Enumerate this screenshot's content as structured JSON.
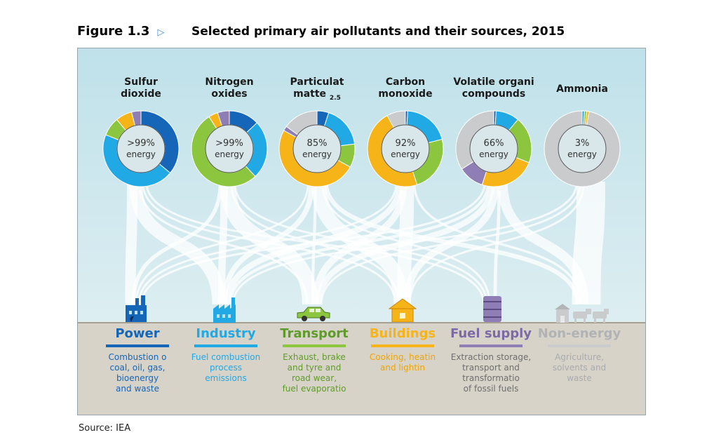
{
  "figure": {
    "label": "Figure 1.3",
    "arrow": "▷",
    "title": "Selected primary air pollutants and their sources, 2015"
  },
  "colors": {
    "power": "#1565b8",
    "industry": "#21a9e6",
    "transport": "#8cc63f",
    "buildings": "#f7b418",
    "fuel_supply": "#8f7db5",
    "non_energy": "#c9cbcd"
  },
  "pollutants": [
    {
      "name_line1": "Sulfur",
      "name_line2": "dioxide",
      "sub": "",
      "pct": ">99%",
      "pct_label": "energy",
      "shares": [
        {
          "sector": "power",
          "value": 0.36
        },
        {
          "sector": "industry",
          "value": 0.45
        },
        {
          "sector": "transport",
          "value": 0.08
        },
        {
          "sector": "buildings",
          "value": 0.07
        },
        {
          "sector": "fuel_supply",
          "value": 0.04
        }
      ]
    },
    {
      "name_line1": "Nitrogen",
      "name_line2": "oxides",
      "sub": "",
      "pct": ">99%",
      "pct_label": "energy",
      "shares": [
        {
          "sector": "power",
          "value": 0.13
        },
        {
          "sector": "industry",
          "value": 0.25
        },
        {
          "sector": "transport",
          "value": 0.53
        },
        {
          "sector": "buildings",
          "value": 0.04
        },
        {
          "sector": "fuel_supply",
          "value": 0.05
        }
      ]
    },
    {
      "name_line1": "Particulat",
      "name_line2": "matte",
      "sub": "2.5",
      "pct": "85%",
      "pct_label": "energy",
      "shares": [
        {
          "sector": "power",
          "value": 0.05
        },
        {
          "sector": "industry",
          "value": 0.18
        },
        {
          "sector": "transport",
          "value": 0.1
        },
        {
          "sector": "buildings",
          "value": 0.5
        },
        {
          "sector": "fuel_supply",
          "value": 0.02
        },
        {
          "sector": "non_energy",
          "value": 0.15
        }
      ]
    },
    {
      "name_line1": "Carbon",
      "name_line2": "monoxide",
      "sub": "",
      "pct": "92%",
      "pct_label": "energy",
      "shares": [
        {
          "sector": "power",
          "value": 0.01
        },
        {
          "sector": "industry",
          "value": 0.2
        },
        {
          "sector": "transport",
          "value": 0.24
        },
        {
          "sector": "buildings",
          "value": 0.47
        },
        {
          "sector": "non_energy",
          "value": 0.08
        }
      ]
    },
    {
      "name_line1": "Volatile organi",
      "name_line2": "compounds",
      "sub": "",
      "pct": "66%",
      "pct_label": "energy",
      "shares": [
        {
          "sector": "power",
          "value": 0.01
        },
        {
          "sector": "industry",
          "value": 0.1
        },
        {
          "sector": "transport",
          "value": 0.2
        },
        {
          "sector": "buildings",
          "value": 0.24
        },
        {
          "sector": "fuel_supply",
          "value": 0.11
        },
        {
          "sector": "non_energy",
          "value": 0.34
        }
      ]
    },
    {
      "name_line1": "",
      "name_line2": "Ammonia",
      "sub": "",
      "pct": "3%",
      "pct_label": "energy",
      "shares": [
        {
          "sector": "industry",
          "value": 0.01
        },
        {
          "sector": "transport",
          "value": 0.01
        },
        {
          "sector": "buildings",
          "value": 0.01
        },
        {
          "sector": "non_energy",
          "value": 0.97
        }
      ]
    }
  ],
  "sectors": [
    {
      "key": "power",
      "name": "Power",
      "desc1": "Combustion o",
      "desc2": "coal, oil, gas,",
      "desc3": "bioenergy",
      "desc4": "and waste",
      "icon": "factory-icon"
    },
    {
      "key": "industry",
      "name": "Industry",
      "desc1": "Fuel combustion",
      "desc2": "process",
      "desc3": "emissions",
      "desc4": "",
      "icon": "industry-factory-icon"
    },
    {
      "key": "transport",
      "name": "Transport",
      "desc1": "Exhaust, brake",
      "desc2": "and tyre and",
      "desc3": "road wear,",
      "desc4": "fuel evaporatio",
      "icon": "car-icon"
    },
    {
      "key": "buildings",
      "name": "Buildings",
      "desc1": "Cooking, heatin",
      "desc2": "and lightin",
      "desc3": "",
      "desc4": "",
      "icon": "house-icon"
    },
    {
      "key": "fuel_supply",
      "name": "Fuel supply",
      "desc1": "Extraction storage,",
      "desc2": "transport and",
      "desc3": "transformatio",
      "desc4": "of fossil fuels",
      "icon": "oil-barrel-icon"
    },
    {
      "key": "non_energy",
      "name": "Non-energy",
      "desc1": "Agriculture,",
      "desc2": "solvents and",
      "desc3": "waste",
      "desc4": "",
      "icon": "farm-icon"
    }
  ],
  "source": "Source:  IEA"
}
